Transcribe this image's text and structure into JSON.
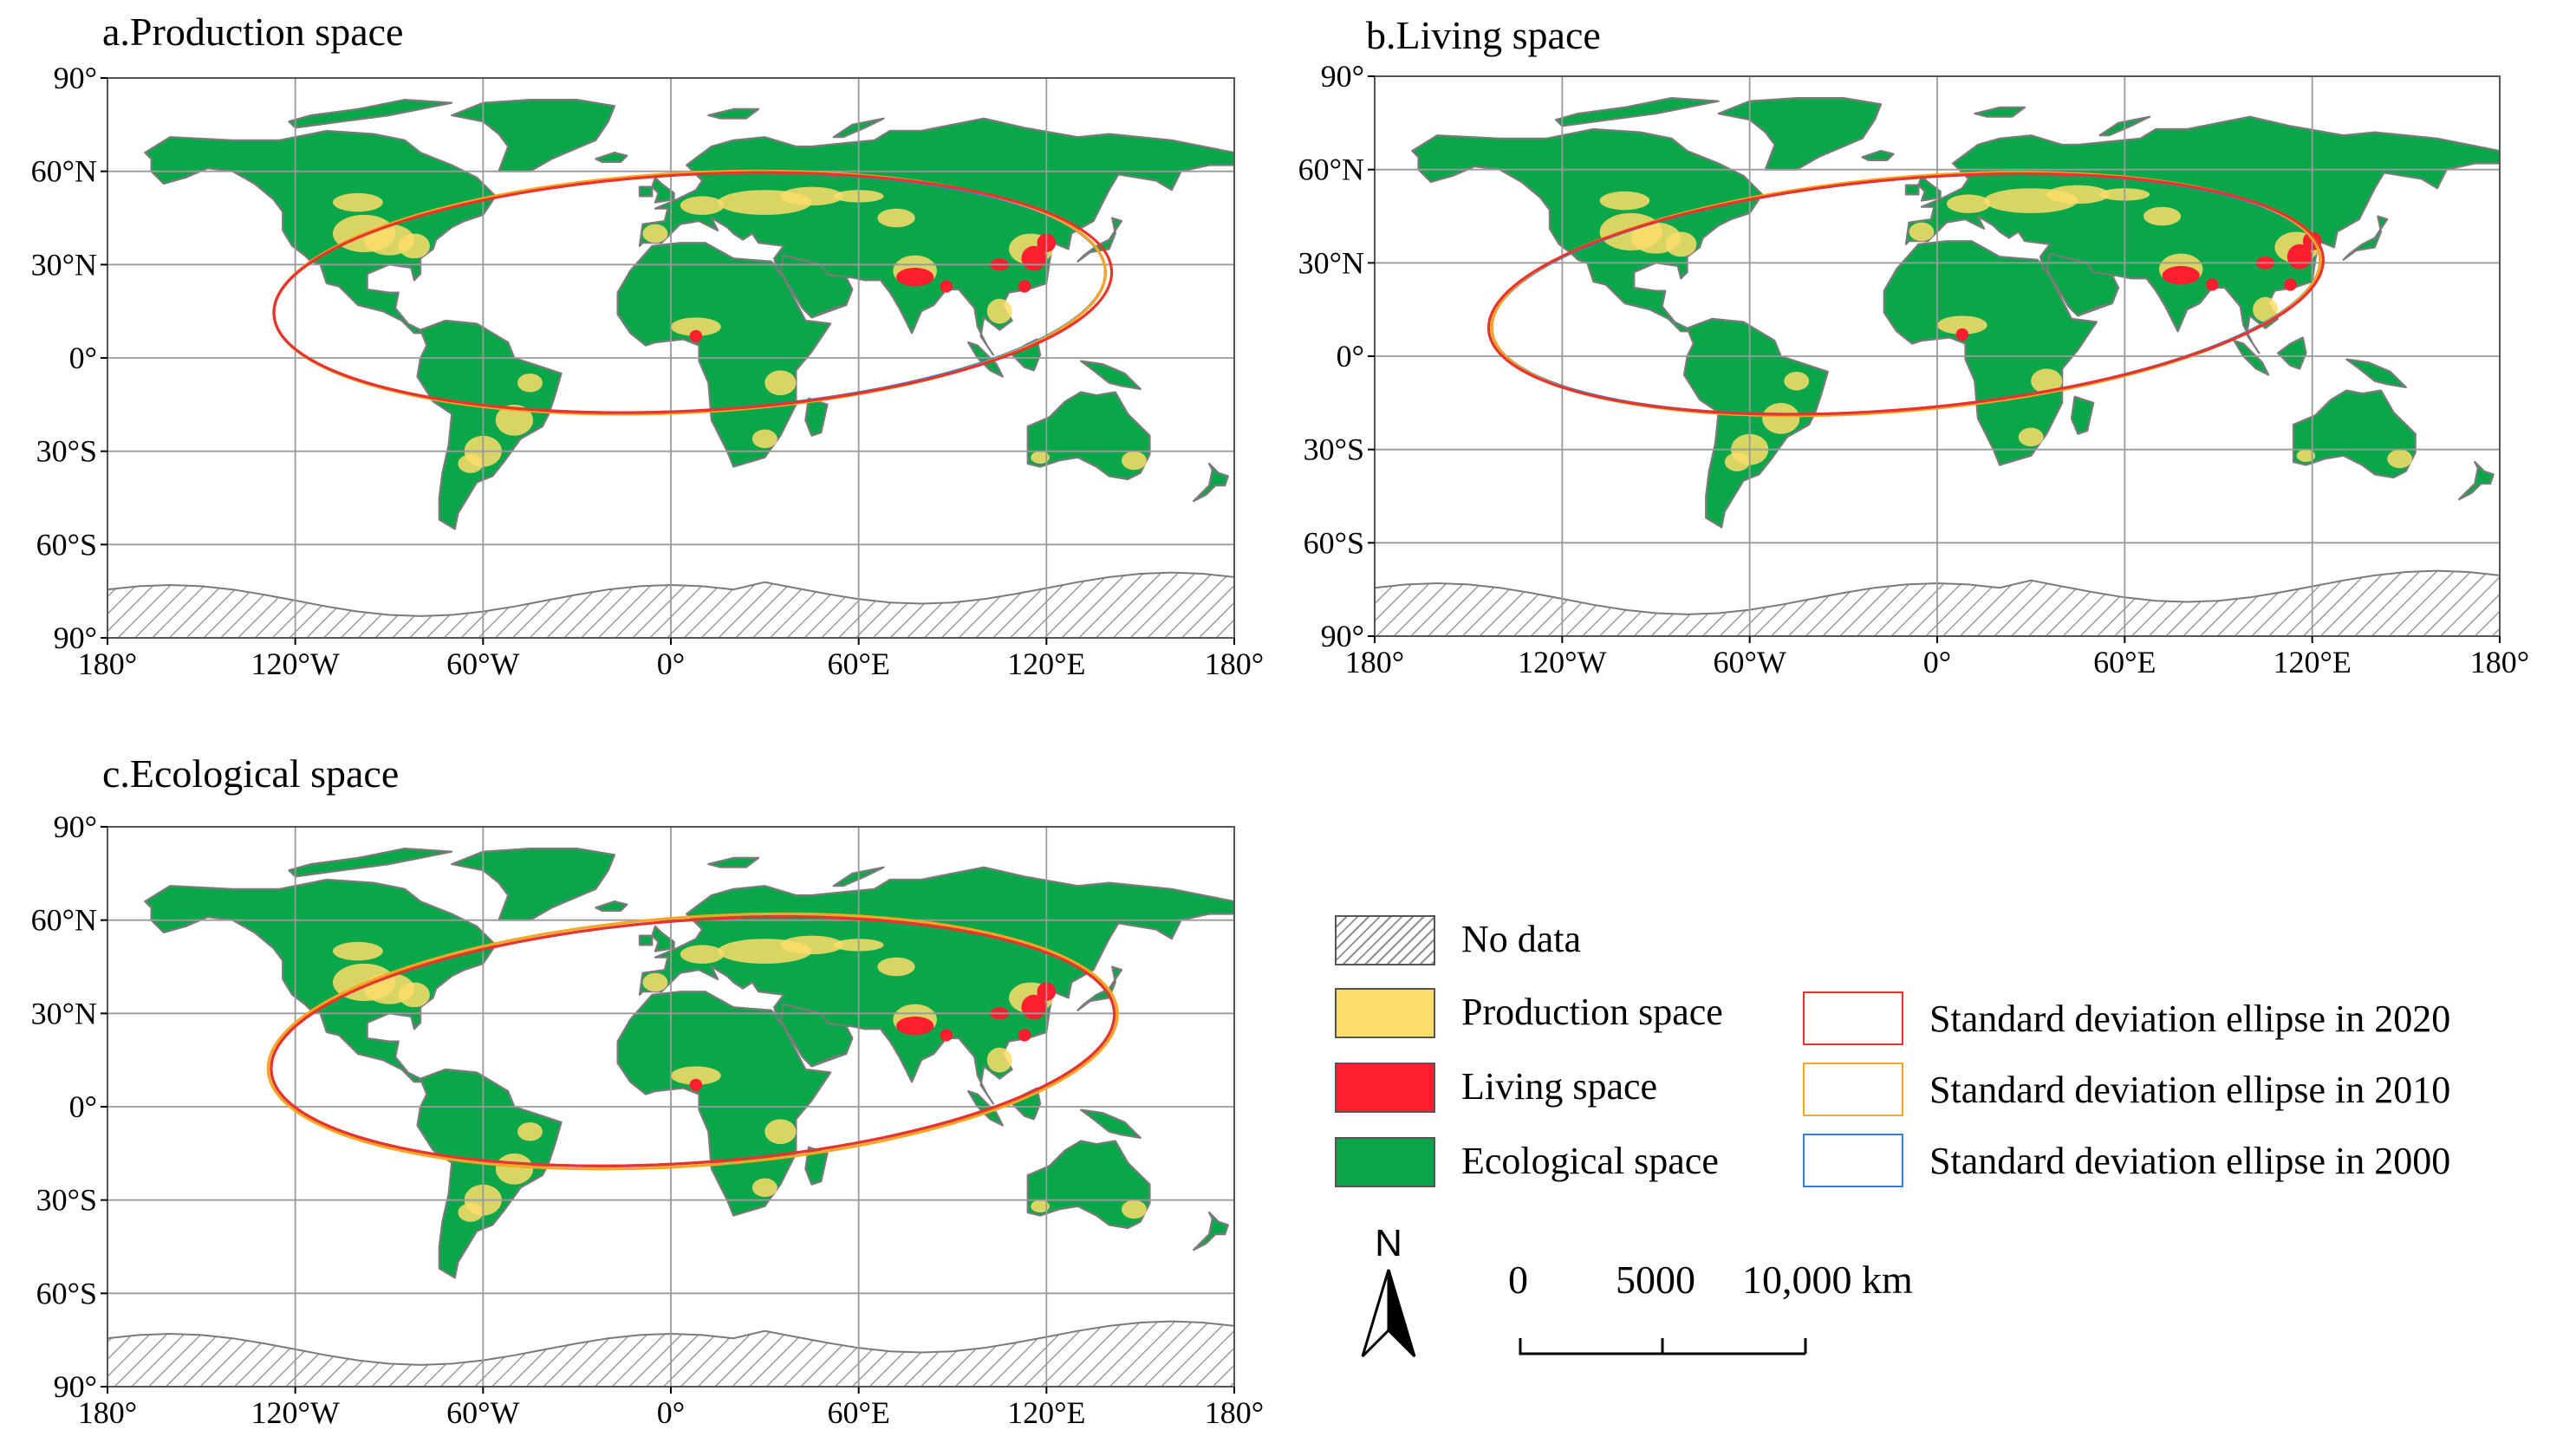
{
  "panels": [
    {
      "title": "a.Production space"
    },
    {
      "title": "b.Living space"
    },
    {
      "title": "c.Ecological space"
    }
  ],
  "lat_labels": [
    "90°",
    "60°N",
    "30°N",
    "0°",
    "30°S",
    "60°S",
    "90°"
  ],
  "lon_labels": [
    "180°",
    "120°W",
    "60°W",
    "0°",
    "60°E",
    "120°E",
    "180°"
  ],
  "legend": {
    "no_data": "No data",
    "production": "Production space",
    "living": "Living space",
    "ecological": "Ecological space",
    "ellipse_2020": "Standard deviation ellipse in 2020",
    "ellipse_2010": "Standard deviation ellipse in 2010",
    "ellipse_2000": "Standard deviation ellipse in 2000"
  },
  "scale": {
    "zero": "0",
    "mid": "5000",
    "max": "10,000 km"
  },
  "north_label": "N",
  "colors": {
    "ecological": "#0aa64a",
    "production": "#fddd6a",
    "living": "#ff1e2d",
    "ellipse_2020": "#e8342c",
    "ellipse_2010": "#f5a623",
    "ellipse_2000": "#3a7fd5",
    "coast": "#7a7a7a"
  }
}
